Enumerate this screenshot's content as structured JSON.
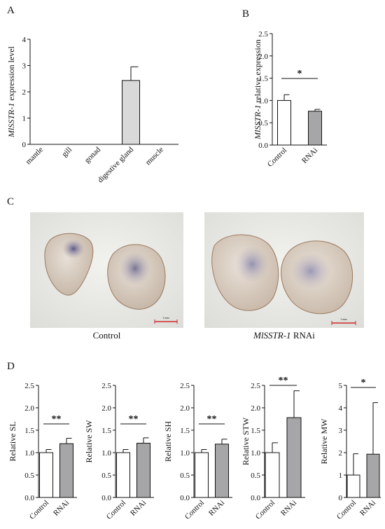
{
  "panels": {
    "A": "A",
    "B": "B",
    "C": "C",
    "D": "D"
  },
  "photos": [
    {
      "caption": "Control",
      "scale_label": "1 mm"
    },
    {
      "caption_italic": "MlSSTR-1",
      "caption_rest": " RNAi",
      "scale_label": "1 mm"
    }
  ],
  "colors": {
    "control_bar": "#ffffff",
    "rnai_bar": "#a6a6a8",
    "tissue_bar": "#d9d9d9",
    "scale_bar": "#cc2a2a"
  },
  "chart_data": [
    {
      "id": "A",
      "type": "bar",
      "ylabel_italic": "MlSSTR-1",
      "ylabel_rest": " expression level",
      "categories": [
        "mantle",
        "gill",
        "gonad",
        "digestive gland",
        "muscle"
      ],
      "values": [
        0,
        0,
        0,
        2.43,
        0
      ],
      "errors": [
        0,
        0,
        0,
        0.52,
        0
      ],
      "ylim": [
        0,
        4
      ],
      "yticks": [
        "0",
        "1",
        "2",
        "3",
        "4"
      ]
    },
    {
      "id": "B",
      "type": "bar",
      "ylabel_italic": "MlSSTR-1",
      "ylabel_rest": " relative expression",
      "categories": [
        "Control",
        "RNAi"
      ],
      "values": [
        1.0,
        0.76
      ],
      "errors": [
        0.13,
        0.04
      ],
      "ylim": [
        0,
        2.5
      ],
      "yticks": [
        "0.0",
        "0.5",
        "1.0",
        "1.5",
        "2.0",
        "2.5"
      ],
      "significance": "*"
    },
    {
      "id": "SL",
      "type": "bar",
      "ylabel": "Relative SL",
      "categories": [
        "Control",
        "RNAi"
      ],
      "values": [
        1.0,
        1.2
      ],
      "errors": [
        0.07,
        0.12
      ],
      "ylim": [
        0,
        2.5
      ],
      "yticks": [
        "0.0",
        "0.5",
        "1.0",
        "1.5",
        "2.0",
        "2.5"
      ],
      "significance": "**"
    },
    {
      "id": "SW",
      "type": "bar",
      "ylabel": "Relative SW",
      "categories": [
        "Control",
        "RNAi"
      ],
      "values": [
        1.0,
        1.21
      ],
      "errors": [
        0.07,
        0.12
      ],
      "ylim": [
        0,
        2.5
      ],
      "yticks": [
        "0.0",
        "0.5",
        "1.0",
        "1.5",
        "2.0",
        "2.5"
      ],
      "significance": "**"
    },
    {
      "id": "SH",
      "type": "bar",
      "ylabel": "Relative SH",
      "categories": [
        "Control",
        "RNAi"
      ],
      "values": [
        1.0,
        1.19
      ],
      "errors": [
        0.07,
        0.11
      ],
      "ylim": [
        0,
        2.5
      ],
      "yticks": [
        "0.0",
        "0.5",
        "1.0",
        "1.5",
        "2.0",
        "2.5"
      ],
      "significance": "**"
    },
    {
      "id": "STW",
      "type": "bar",
      "ylabel": "Relative STW",
      "categories": [
        "Control",
        "RNAi"
      ],
      "values": [
        1.0,
        1.78
      ],
      "errors": [
        0.22,
        0.6
      ],
      "ylim": [
        0,
        2.5
      ],
      "yticks": [
        "0.0",
        "0.5",
        "1.0",
        "1.5",
        "2.0",
        "2.5"
      ],
      "significance": "**"
    },
    {
      "id": "MW",
      "type": "bar",
      "ylabel": "Relative MW",
      "categories": [
        "Control",
        "RNAi"
      ],
      "values": [
        1.0,
        1.93
      ],
      "errors": [
        0.95,
        2.3
      ],
      "ylim": [
        0,
        5
      ],
      "yticks": [
        "0",
        "1",
        "2",
        "3",
        "4",
        "5"
      ],
      "significance": "*"
    }
  ]
}
